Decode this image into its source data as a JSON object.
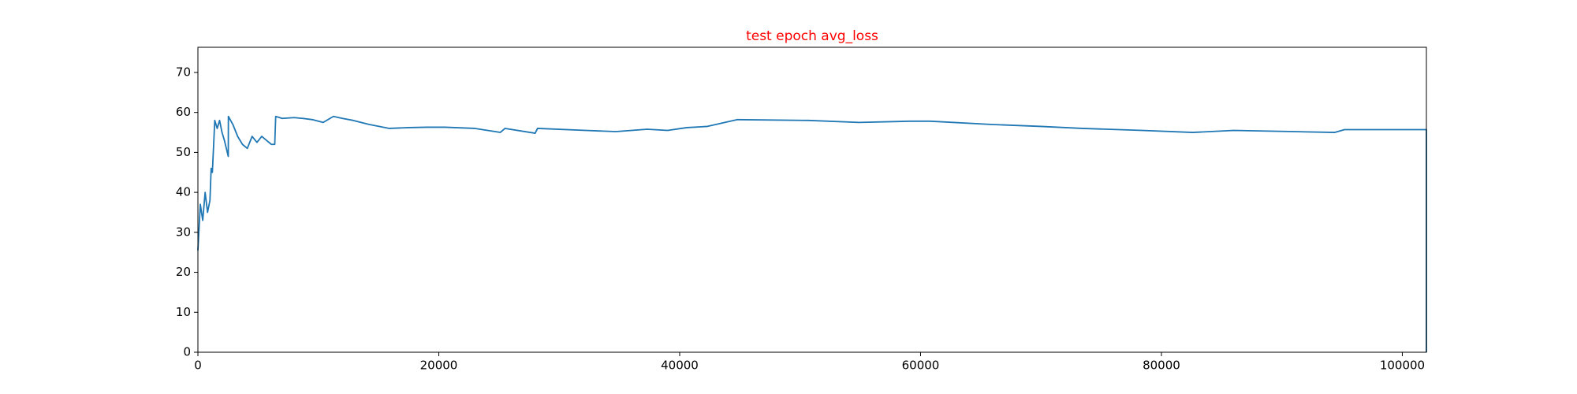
{
  "chart_data": {
    "type": "line",
    "title": "test epoch avg_loss",
    "title_color": "#ff0000",
    "x": [
      0,
      200,
      400,
      600,
      800,
      1000,
      1100,
      1200,
      1400,
      1600,
      1800,
      2000,
      2200,
      2520,
      2530,
      2900,
      3300,
      3700,
      4100,
      4500,
      4900,
      5300,
      5700,
      6100,
      6380,
      6460,
      7000,
      8000,
      8700,
      9500,
      10400,
      11250,
      12000,
      12900,
      14200,
      15900,
      17500,
      19000,
      20500,
      23000,
      25100,
      25500,
      28000,
      28200,
      32200,
      34700,
      37300,
      39000,
      40600,
      42300,
      44800,
      50700,
      54900,
      59100,
      60800,
      65800,
      70000,
      73400,
      78400,
      82600,
      86000,
      91000,
      94400,
      95200,
      102000,
      102000
    ],
    "series": [
      {
        "name": "avg_loss",
        "color": "#1f77b4",
        "values": [
          25.5,
          37,
          33,
          40,
          35,
          38,
          46,
          45,
          58,
          56,
          58,
          55,
          53,
          49,
          59,
          57,
          54,
          52,
          51,
          54,
          52.5,
          54,
          53,
          52,
          52,
          59,
          58.5,
          58.7,
          58.5,
          58.2,
          57.5,
          59,
          58.5,
          58,
          57,
          56,
          56.2,
          56.3,
          56.3,
          56,
          55,
          56,
          54.8,
          56,
          55.5,
          55.2,
          55.8,
          55.5,
          56.2,
          56.5,
          58.2,
          58,
          57.5,
          57.8,
          57.8,
          57,
          56.5,
          56,
          55.5,
          55,
          55.5,
          55.2,
          55,
          55.7,
          55.7,
          0
        ]
      }
    ],
    "xlim": [
      0,
      102000
    ],
    "xticks": [
      0,
      20000,
      40000,
      60000,
      80000,
      100000
    ],
    "ylim": [
      0,
      76.3
    ],
    "yticks": [
      0,
      10,
      20,
      30,
      40,
      50,
      60,
      70
    ],
    "grid": false
  }
}
